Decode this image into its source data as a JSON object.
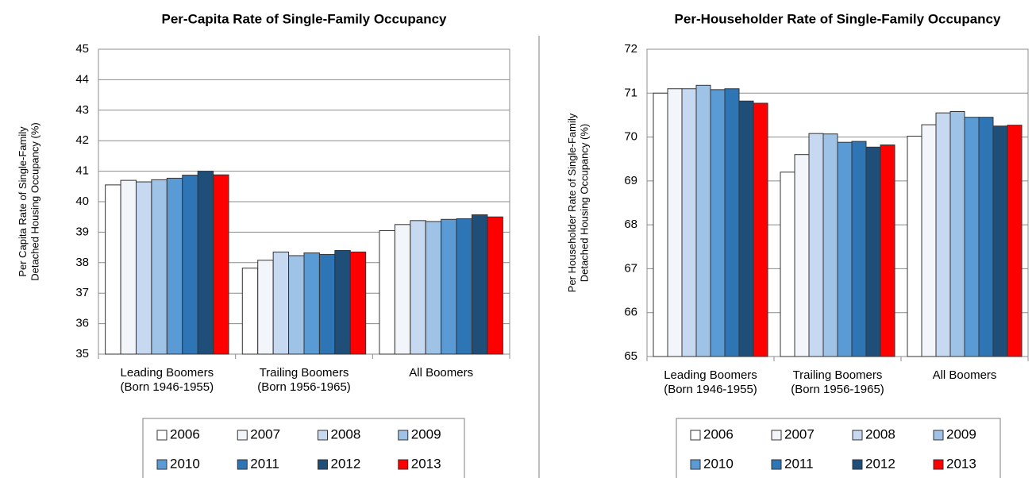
{
  "chart_data": [
    {
      "type": "bar",
      "title": "Per-Capita Rate of Single-Family Occupancy",
      "y_label": "Per Capita Rate of Single-Family\nDetached Housing Occupancy (%)",
      "categories": [
        "Leading Boomers\n(Born 1946-1955)",
        "Trailing Boomers\n(Born 1956-1965)",
        "All Boomers"
      ],
      "series": [
        {
          "name": "2006",
          "color": "#ffffff",
          "values": [
            40.55,
            37.82,
            39.05
          ]
        },
        {
          "name": "2007",
          "color": "#f2f6fb",
          "values": [
            40.7,
            38.08,
            39.25
          ]
        },
        {
          "name": "2008",
          "color": "#c6d9f0",
          "values": [
            40.65,
            38.35,
            39.38
          ]
        },
        {
          "name": "2009",
          "color": "#9fc3e6",
          "values": [
            40.72,
            38.23,
            39.35
          ]
        },
        {
          "name": "2010",
          "color": "#5b9bd5",
          "values": [
            40.77,
            38.32,
            39.42
          ]
        },
        {
          "name": "2011",
          "color": "#2e75b6",
          "values": [
            40.87,
            38.27,
            39.44
          ]
        },
        {
          "name": "2012",
          "color": "#1f4e79",
          "values": [
            41.0,
            38.4,
            39.57
          ]
        },
        {
          "name": "2013",
          "color": "#ff0000",
          "values": [
            40.88,
            38.35,
            39.5
          ]
        }
      ],
      "ylim": [
        35,
        45
      ],
      "yticks": [
        35,
        36,
        37,
        38,
        39,
        40,
        41,
        42,
        43,
        44,
        45
      ],
      "grid": true
    },
    {
      "type": "bar",
      "title": "Per-Householder Rate of Single-Family Occupancy",
      "y_label": "Per Householder Rate of Single-Family\nDetached Housing Occupancy (%)",
      "categories": [
        "Leading Boomers\n(Born 1946-1955)",
        "Trailing Boomers\n(Born 1956-1965)",
        "All Boomers"
      ],
      "series": [
        {
          "name": "2006",
          "color": "#ffffff",
          "values": [
            71.0,
            69.2,
            70.02
          ]
        },
        {
          "name": "2007",
          "color": "#f2f6fb",
          "values": [
            71.1,
            69.6,
            70.28
          ]
        },
        {
          "name": "2008",
          "color": "#c6d9f0",
          "values": [
            71.1,
            70.08,
            70.55
          ]
        },
        {
          "name": "2009",
          "color": "#9fc3e6",
          "values": [
            71.18,
            70.07,
            70.58
          ]
        },
        {
          "name": "2010",
          "color": "#5b9bd5",
          "values": [
            71.08,
            69.88,
            70.45
          ]
        },
        {
          "name": "2011",
          "color": "#2e75b6",
          "values": [
            71.1,
            69.9,
            70.45
          ]
        },
        {
          "name": "2012",
          "color": "#1f4e79",
          "values": [
            70.82,
            69.77,
            70.25
          ]
        },
        {
          "name": "2013",
          "color": "#ff0000",
          "values": [
            70.77,
            69.82,
            70.27
          ]
        }
      ],
      "ylim": [
        65,
        72
      ],
      "yticks": [
        65,
        66,
        67,
        68,
        69,
        70,
        71,
        72
      ],
      "grid": true
    }
  ]
}
